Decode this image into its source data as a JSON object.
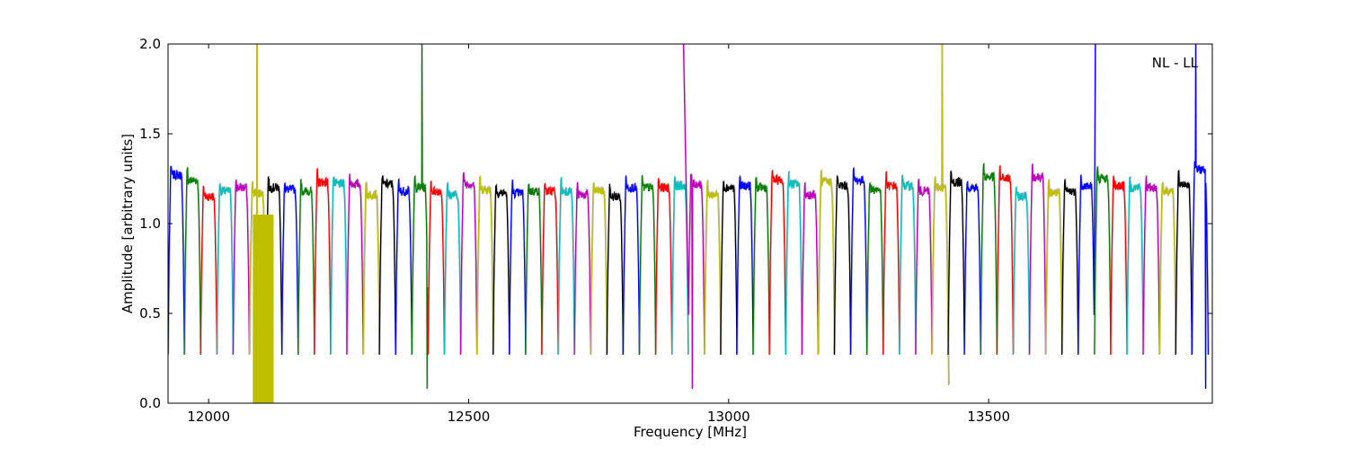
{
  "chart_data": {
    "type": "line",
    "title": "",
    "xlabel": "Frequency [MHz]",
    "ylabel": "Amplitude [arbitrary units]",
    "annotation": "NL - LL",
    "annotation_position": "top-right",
    "xlim": [
      11922,
      13930
    ],
    "ylim": [
      0,
      2.0
    ],
    "x_ticks": [
      12000,
      12500,
      13000,
      13500
    ],
    "x_tick_labels": [
      "12000",
      "12500",
      "13000",
      "13500"
    ],
    "y_ticks": [
      0.0,
      0.5,
      1.0,
      1.5,
      2.0
    ],
    "y_tick_labels": [
      "0.0",
      "0.5",
      "1.0",
      "1.5",
      "2.0"
    ],
    "grid": false,
    "legend": "none",
    "color_cycle": [
      "#0000ff",
      "#008000",
      "#ff0000",
      "#00bfbf",
      "#bf00bf",
      "#bfbf00",
      "#000000"
    ],
    "shadow_color": "#bfbfbf",
    "channel_width_mhz": 31.25,
    "channel_count": 64,
    "channel_base_levels": [
      1.27,
      1.24,
      1.15,
      1.18,
      1.2,
      1.17,
      1.2,
      1.19,
      1.18,
      1.23,
      1.22,
      1.22,
      1.16,
      1.22,
      1.18,
      1.2,
      1.18,
      1.16,
      1.22,
      1.19,
      1.17,
      1.17,
      1.18,
      1.18,
      1.18,
      1.16,
      1.18,
      1.15,
      1.2,
      1.2,
      1.2,
      1.21,
      1.22,
      1.16,
      1.2,
      1.21,
      1.2,
      1.24,
      1.22,
      1.16,
      1.23,
      1.21,
      1.24,
      1.19,
      1.21,
      1.21,
      1.18,
      1.2,
      1.23,
      1.2,
      1.26,
      1.25,
      1.15,
      1.26,
      1.17,
      1.18,
      1.21,
      1.25,
      1.21,
      1.2,
      1.2,
      1.18,
      1.22,
      1.3
    ],
    "edge_minimum": 0.27,
    "spikes": [
      {
        "channel": 5,
        "x": 12093,
        "y": 2.0,
        "kind": "flagged-band",
        "x_range": [
          12085,
          12125
        ]
      },
      {
        "channel": 15,
        "x": 12410,
        "y": 2.0,
        "kind": "spike"
      },
      {
        "channel": 15,
        "x": 12420,
        "y": 0.08,
        "kind": "dip"
      },
      {
        "channel": 32,
        "x": 12913,
        "y": 2.0,
        "kind": "spike"
      },
      {
        "channel": 32,
        "x": 12930,
        "y": 0.08,
        "kind": "dip"
      },
      {
        "channel": 47,
        "x": 13410,
        "y": 2.0,
        "kind": "spike"
      },
      {
        "channel": 47,
        "x": 13423,
        "y": 0.1,
        "kind": "dip"
      },
      {
        "channel": 56,
        "x": 13705,
        "y": 2.0,
        "kind": "spike"
      },
      {
        "channel": 63,
        "x": 13898,
        "y": 2.0,
        "kind": "spike"
      },
      {
        "channel": 63,
        "x": 13917,
        "y": 0.08,
        "kind": "dip"
      }
    ]
  }
}
